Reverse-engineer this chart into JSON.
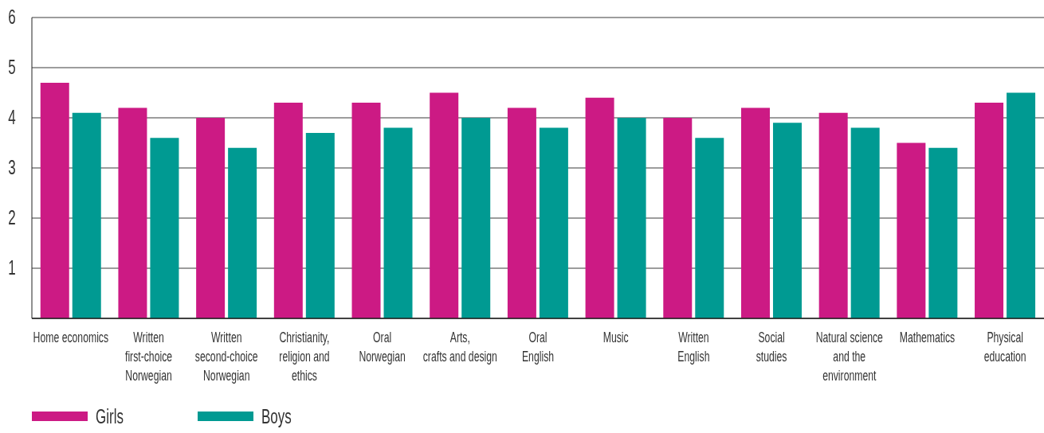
{
  "chart_data": {
    "type": "bar",
    "categories": [
      "Home economics",
      "Written\nfirst-choice\nNorwegian",
      "Written\nsecond-choice\nNorwegian",
      "Christianity,\nreligion and\nethics",
      "Oral\nNorwegian",
      "Arts,\ncrafts and design",
      "Oral\nEnglish",
      "Music",
      "Written\nEnglish",
      "Social\nstudies",
      "Natural science\nand the\nenvironment",
      "Mathematics",
      "Physical\neducation"
    ],
    "series": [
      {
        "name": "Girls",
        "color": "#cc1a84",
        "values": [
          4.7,
          4.2,
          4.0,
          4.3,
          4.3,
          4.5,
          4.2,
          4.4,
          4.0,
          4.2,
          4.1,
          3.5,
          4.3
        ]
      },
      {
        "name": "Boys",
        "color": "#009a92",
        "values": [
          4.1,
          3.6,
          3.4,
          3.7,
          3.8,
          4.0,
          3.8,
          4.0,
          3.6,
          3.9,
          3.8,
          3.4,
          4.5
        ]
      }
    ],
    "ylim": [
      0,
      6
    ],
    "yticks": [
      1,
      2,
      3,
      4,
      5,
      6
    ],
    "grid": "y",
    "legend": "bottom left"
  }
}
